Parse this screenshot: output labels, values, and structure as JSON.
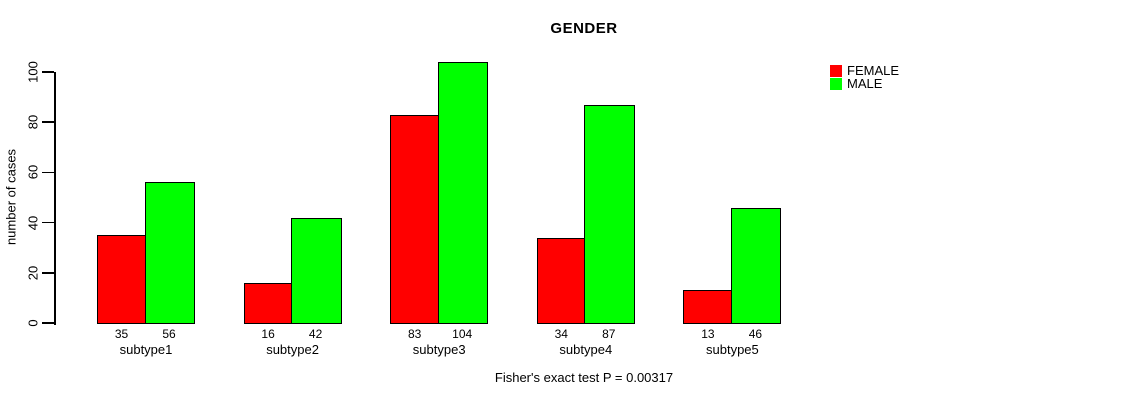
{
  "chart_data": {
    "type": "bar",
    "title": "GENDER",
    "xlabel": "",
    "ylabel": "number of cases",
    "categories": [
      "subtype1",
      "subtype2",
      "subtype3",
      "subtype4",
      "subtype5"
    ],
    "series": [
      {
        "name": "FEMALE",
        "color": "#ff0000",
        "values": [
          35,
          16,
          83,
          34,
          13
        ]
      },
      {
        "name": "MALE",
        "color": "#00ff00",
        "values": [
          56,
          42,
          104,
          87,
          46
        ]
      }
    ],
    "yticks": [
      0,
      20,
      40,
      60,
      80,
      100
    ],
    "ylim": [
      0,
      105
    ],
    "grid": false,
    "bar_value_labels_shown": true,
    "legend_position": "top-right",
    "annotation": "Fisher's exact test P = 0.00317"
  }
}
